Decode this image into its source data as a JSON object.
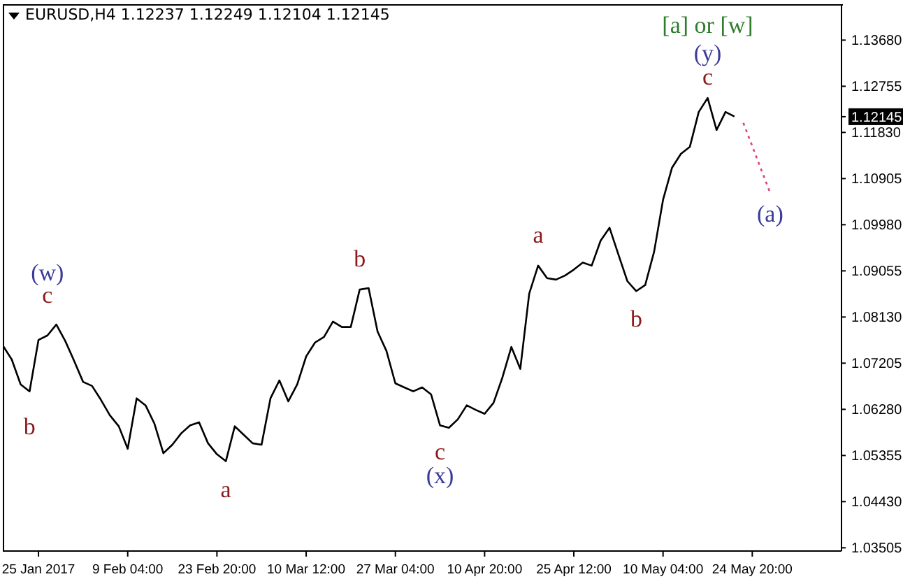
{
  "chart_data": {
    "type": "line",
    "title": "EURUSD,H4 1.12237 1.12249 1.12104 1.12145",
    "categories": [
      null,
      null,
      null,
      null,
      "25 Jan 2017",
      null,
      null,
      null,
      null,
      null,
      null,
      null,
      null,
      null,
      "9 Feb 04:00",
      null,
      null,
      null,
      null,
      null,
      null,
      null,
      null,
      null,
      "23 Feb 20:00",
      null,
      null,
      null,
      null,
      null,
      null,
      null,
      null,
      null,
      "10 Mar 12:00",
      null,
      null,
      null,
      null,
      null,
      null,
      null,
      null,
      null,
      "27 Mar 04:00",
      null,
      null,
      null,
      null,
      null,
      null,
      null,
      null,
      null,
      "10 Apr 20:00",
      null,
      null,
      null,
      null,
      null,
      null,
      null,
      null,
      null,
      "25 Apr 12:00",
      null,
      null,
      null,
      null,
      null,
      null,
      null,
      null,
      null,
      "10 May 04:00",
      null,
      null,
      null,
      null,
      null,
      null,
      null,
      null,
      null,
      "24 May 20:00",
      null,
      null,
      null,
      null,
      null,
      null,
      null,
      null,
      null,
      null
    ],
    "ylim": [
      1.0344,
      1.144
    ],
    "yticks": [
      {
        "value": 1.03505,
        "label": "1.03505"
      },
      {
        "value": 1.0443,
        "label": "1.04430"
      },
      {
        "value": 1.05355,
        "label": "1.05355"
      },
      {
        "value": 1.0628,
        "label": "1.06280"
      },
      {
        "value": 1.07205,
        "label": "1.07205"
      },
      {
        "value": 1.0813,
        "label": "1.08130"
      },
      {
        "value": 1.09055,
        "label": "1.09055"
      },
      {
        "value": 1.0998,
        "label": "1.09980"
      },
      {
        "value": 1.10905,
        "label": "1.10905"
      },
      {
        "value": 1.1183,
        "label": "1.11830"
      },
      {
        "value": 1.12145,
        "label": "1.12145"
      },
      {
        "value": 1.12755,
        "label": "1.12755"
      },
      {
        "value": 1.1368,
        "label": "1.13680"
      }
    ],
    "marker": "none",
    "series": [
      {
        "color": "#000000",
        "values": [
          1.0756,
          1.0728,
          1.0678,
          1.0664,
          1.0767,
          1.0776,
          1.0798,
          1.0765,
          1.0725,
          1.0683,
          1.0675,
          1.0647,
          1.0616,
          1.0594,
          1.0549,
          1.065,
          1.0636,
          1.0599,
          1.054,
          1.0557,
          1.058,
          1.0596,
          1.0602,
          1.056,
          1.0538,
          1.0524,
          1.0594,
          1.0577,
          1.056,
          1.0557,
          1.065,
          1.0686,
          1.0644,
          1.0678,
          1.0734,
          1.0762,
          1.0773,
          1.0804,
          1.0793,
          1.0793,
          1.0868,
          1.0871,
          1.0784,
          1.0745,
          1.068,
          1.0672,
          1.0664,
          1.0672,
          1.0658,
          1.0596,
          1.0591,
          1.0608,
          1.0636,
          1.0627,
          1.0619,
          1.0641,
          1.0692,
          1.0753,
          1.0709,
          1.086,
          1.0916,
          1.0891,
          1.0888,
          1.0896,
          1.0908,
          1.0922,
          1.0916,
          1.0966,
          1.0992,
          1.0938,
          1.0885,
          1.0865,
          1.0877,
          1.0944,
          1.1048,
          1.1112,
          1.114,
          1.1154,
          1.1224,
          1.1252,
          1.1188,
          1.1224,
          1.1215,
          null,
          null,
          null,
          null,
          null,
          null,
          null,
          null,
          null,
          null,
          null,
          null
        ]
      },
      {
        "type": "line",
        "color": "#e0407a",
        "line_style": "dotted",
        "values": [
          null,
          null,
          null,
          null,
          null,
          null,
          null,
          null,
          null,
          null,
          null,
          null,
          null,
          null,
          null,
          null,
          null,
          null,
          null,
          null,
          null,
          null,
          null,
          null,
          null,
          null,
          null,
          null,
          null,
          null,
          null,
          null,
          null,
          null,
          null,
          null,
          null,
          null,
          null,
          null,
          null,
          null,
          null,
          null,
          null,
          null,
          null,
          null,
          null,
          null,
          null,
          null,
          null,
          null,
          null,
          null,
          null,
          null,
          null,
          null,
          null,
          null,
          null,
          null,
          null,
          null,
          null,
          null,
          null,
          null,
          null,
          null,
          null,
          null,
          null,
          null,
          null,
          null,
          null,
          null,
          null,
          null,
          null,
          1.1202,
          null,
          null,
          1.1062,
          null,
          null,
          null,
          null,
          null,
          null,
          null,
          null
        ]
      }
    ],
    "annotations": [
      "(w)",
      "c",
      "b",
      "a",
      "b",
      "c",
      "(x)",
      "a",
      "b",
      "c",
      "(y)",
      "[a] or [w]",
      "(a)"
    ]
  }
}
